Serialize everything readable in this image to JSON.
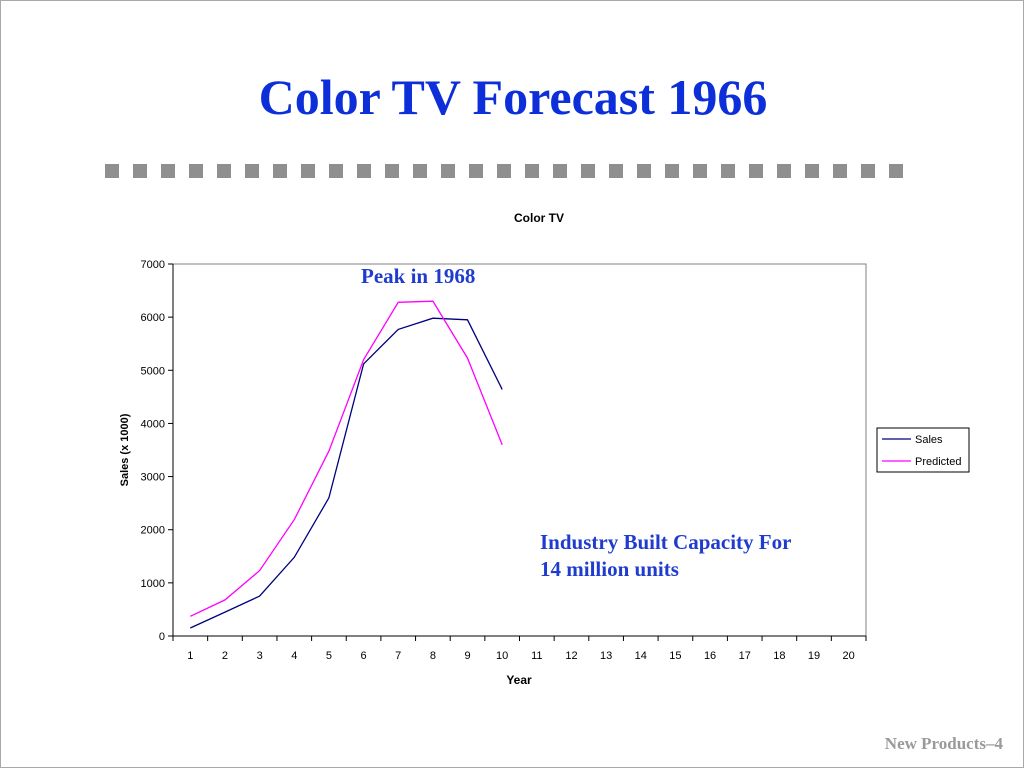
{
  "slide": {
    "title": "Color TV Forecast 1966",
    "footer": "New Products–4",
    "annotations": {
      "peak": "Peak in 1968",
      "capacity_line1": "Industry Built Capacity For",
      "capacity_line2": "14 million units"
    },
    "colors": {
      "title": "#0d2fd9",
      "annotation": "#1f3ccf",
      "dash": "#8f8f8f",
      "footer": "#9a9a9a"
    }
  },
  "chart_data": {
    "type": "line",
    "title": "Color TV",
    "xlabel": "Year",
    "ylabel": "Sales (x 1000)",
    "x": [
      1,
      2,
      3,
      4,
      5,
      6,
      7,
      8,
      9,
      10,
      11,
      12,
      13,
      14,
      15,
      16,
      17,
      18,
      19,
      20
    ],
    "ylim": [
      0,
      7000
    ],
    "yticks": [
      0,
      1000,
      2000,
      3000,
      4000,
      5000,
      6000,
      7000
    ],
    "grid": false,
    "legend": "right",
    "series": [
      {
        "name": "Sales",
        "color": "#000080",
        "x": [
          1,
          2,
          3,
          4,
          5,
          6,
          7,
          8,
          9,
          10
        ],
        "values": [
          150,
          450,
          750,
          1480,
          2600,
          5120,
          5770,
          5980,
          5950,
          4640
        ]
      },
      {
        "name": "Predicted",
        "color": "#ff00ff",
        "x": [
          1,
          2,
          3,
          4,
          5,
          6,
          7,
          8,
          9,
          10
        ],
        "values": [
          370,
          680,
          1230,
          2190,
          3480,
          5200,
          6280,
          6300,
          5230,
          3600
        ]
      }
    ]
  }
}
